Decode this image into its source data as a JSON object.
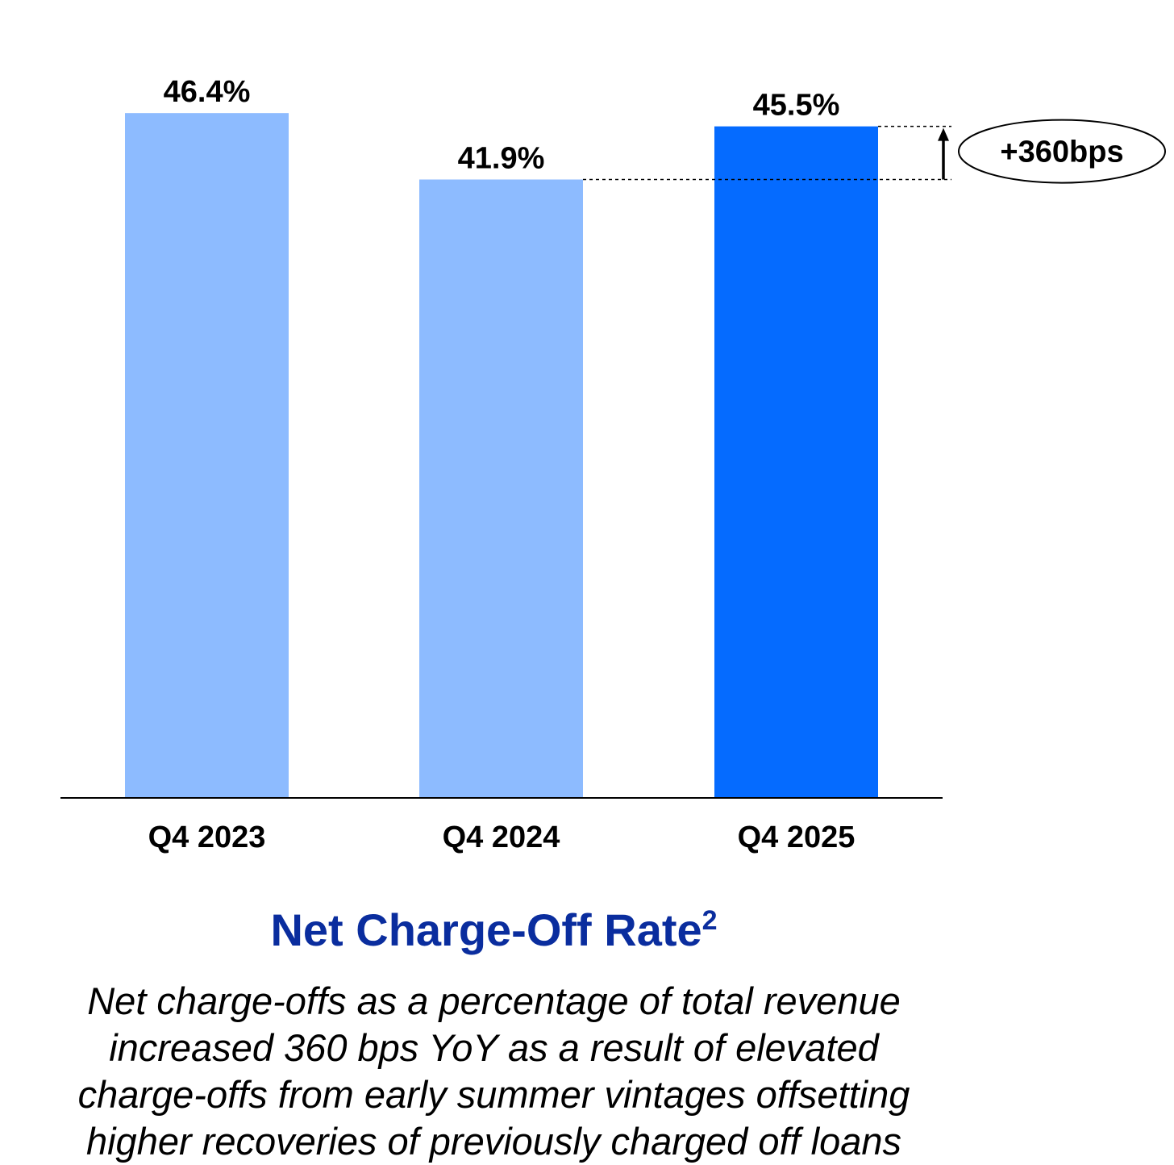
{
  "chart_data": {
    "type": "bar",
    "categories": [
      "Q4 2023",
      "Q4 2024",
      "Q4 2025"
    ],
    "values": [
      46.4,
      41.9,
      45.5
    ],
    "value_labels": [
      "46.4%",
      "41.9%",
      "45.5%"
    ],
    "ylim": [
      0,
      50.4
    ],
    "unit": "%",
    "bar_colors": [
      "#8dbbff",
      "#8dbbff",
      "#056bff"
    ],
    "title": "Net Charge-Off Rate",
    "title_superscript": "2",
    "title_color": "#0a2d9e",
    "xlabel": "",
    "ylabel": "",
    "grid": false,
    "annotation": {
      "text": "+360bps",
      "from_value": 41.9,
      "to_value": 45.5,
      "shape": "ellipse",
      "arrow": "up"
    },
    "caption_lines": [
      "Net charge-offs as a percentage of total revenue",
      "increased 360 bps YoY as a result of elevated",
      "charge-offs from early summer vintages offsetting",
      "higher recoveries of previously charged off loans"
    ]
  }
}
